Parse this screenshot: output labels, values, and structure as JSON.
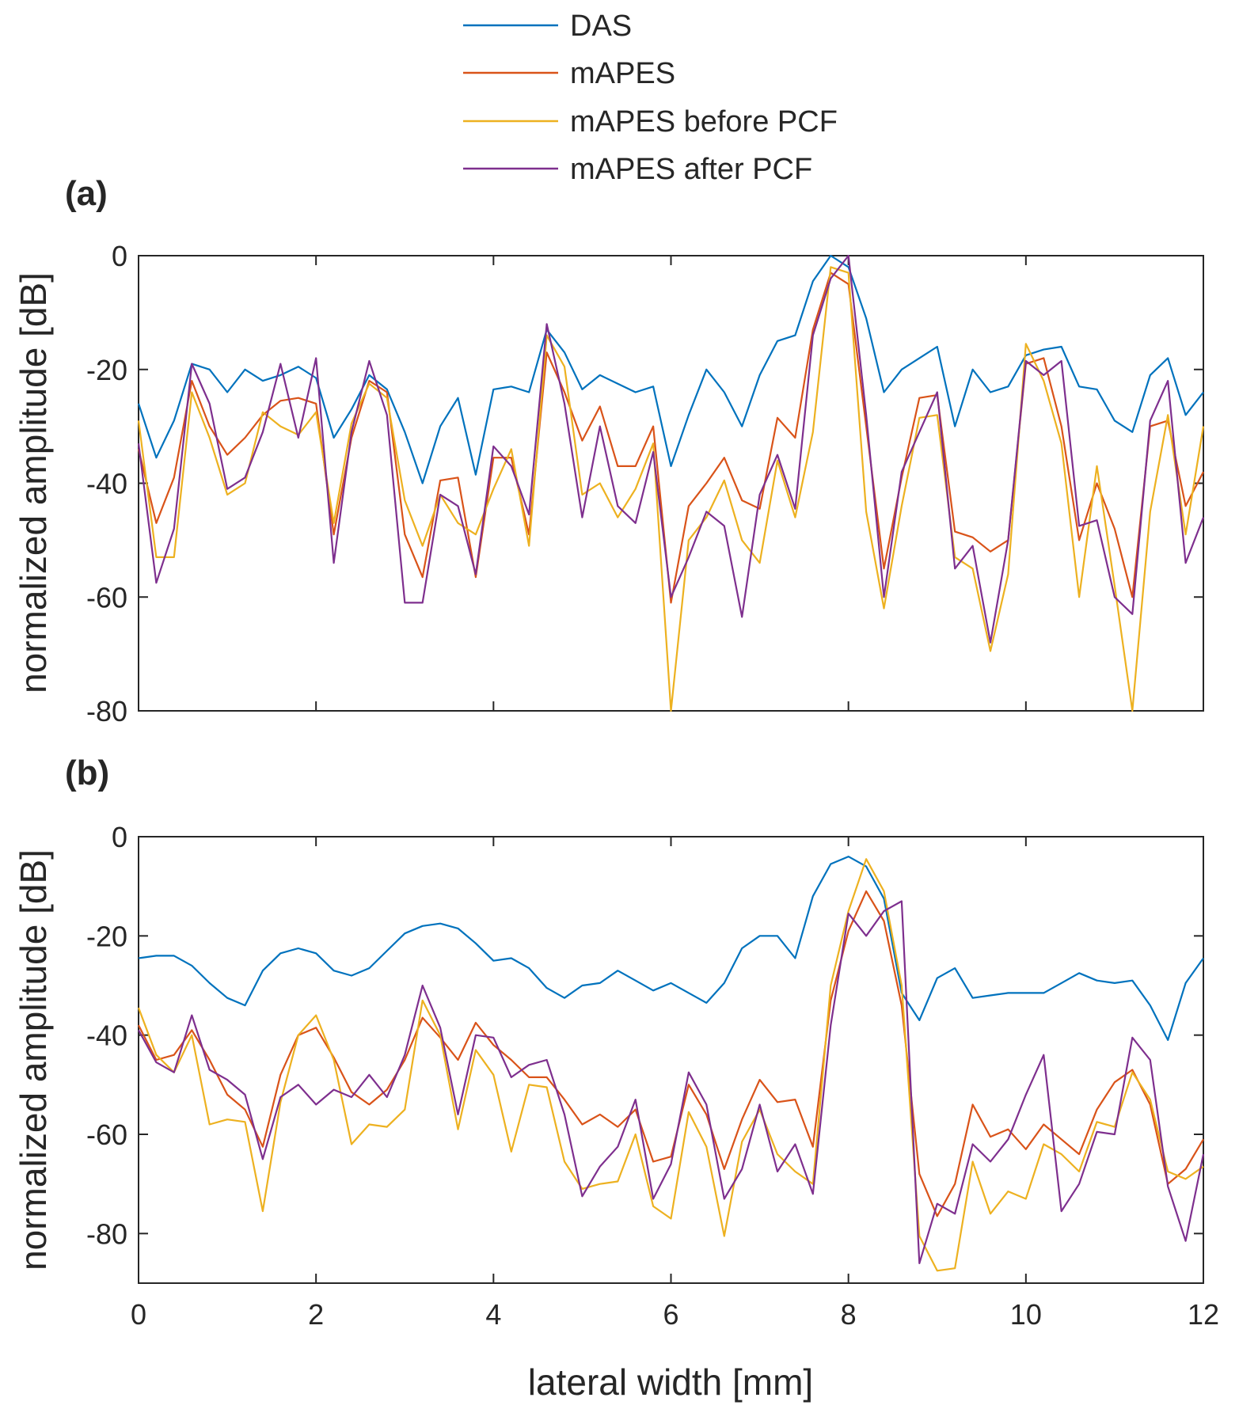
{
  "legend": [
    {
      "name": "DAS",
      "color": "#0072BD"
    },
    {
      "name": "mAPES",
      "color": "#D95319"
    },
    {
      "name": "mAPES before PCF",
      "color": "#EDB120"
    },
    {
      "name": "mAPES after PCF",
      "color": "#7E2F8E"
    }
  ],
  "chart_data": [
    {
      "type": "line",
      "panel_label": "(a)",
      "xlabel": "",
      "ylabel": "normalized amplitude [dB]",
      "xlim": [
        0,
        12
      ],
      "ylim": [
        -80,
        0
      ],
      "xticks": [
        0,
        2,
        4,
        6,
        8,
        10,
        12
      ],
      "xtick_labels": [
        "",
        "",
        "",
        "",
        "",
        "",
        ""
      ],
      "yticks": [
        0,
        -20,
        -40,
        -60,
        -80
      ],
      "ytick_labels": [
        "0",
        "-20",
        "-40",
        "-60",
        "-80"
      ],
      "x_step": 0.2,
      "series": [
        {
          "name": "DAS",
          "color": "#0072BD",
          "values": [
            -26,
            -35.5,
            -29,
            -19,
            -20,
            -24,
            -20,
            -22,
            -21,
            -19.5,
            -21.5,
            -32,
            -27,
            -21,
            -23.5,
            -31,
            -40,
            -30,
            -25,
            -38.5,
            -23.5,
            -23,
            -24,
            -13,
            -17,
            -23.5,
            -21,
            -22.5,
            -24,
            -23,
            -37,
            -28,
            -20,
            -24,
            -30,
            -21,
            -15,
            -14,
            -4.5,
            0,
            -2,
            -11,
            -24,
            -20,
            -18,
            -16,
            -30,
            -20,
            -24,
            -23,
            -17.5,
            -16.5,
            -16,
            -23,
            -23.5,
            -29,
            -31,
            -21,
            -18,
            -28,
            -24
          ]
        },
        {
          "name": "mAPES",
          "color": "#D95319",
          "values": [
            -34,
            -47,
            -39,
            -22,
            -30,
            -35,
            -32,
            -28,
            -25.5,
            -25,
            -26,
            -49,
            -32,
            -22,
            -24,
            -49,
            -56.5,
            -39.5,
            -39,
            -56.5,
            -35.5,
            -35.5,
            -49,
            -17,
            -24,
            -32.5,
            -26.5,
            -37,
            -37,
            -30,
            -61,
            -44,
            -40,
            -35.5,
            -43,
            -44.5,
            -28.5,
            -32,
            -13,
            -3,
            -5,
            -30,
            -55,
            -39,
            -25,
            -24.5,
            -48.5,
            -49.5,
            -52,
            -50,
            -19,
            -18,
            -30,
            -50,
            -40,
            -48,
            -60,
            -30,
            -29,
            -44,
            -38
          ]
        },
        {
          "name": "mAPES before PCF",
          "color": "#EDB120",
          "values": [
            -29,
            -53,
            -53,
            -24,
            -32,
            -42,
            -40,
            -27.5,
            -30,
            -31.5,
            -27.5,
            -47,
            -29.5,
            -22.5,
            -25,
            -43,
            -51,
            -42,
            -47,
            -49,
            -41,
            -34,
            -51,
            -14,
            -19.5,
            -42,
            -40,
            -46,
            -41,
            -33,
            -80,
            -50,
            -46,
            -39.5,
            -50,
            -54,
            -36,
            -46,
            -31,
            -2,
            -3,
            -45,
            -62,
            -44,
            -28.5,
            -28,
            -53,
            -55,
            -69.5,
            -56,
            -15.5,
            -22,
            -33,
            -60,
            -37,
            -58,
            -80,
            -45,
            -28,
            -49,
            -30
          ]
        },
        {
          "name": "mAPES after PCF",
          "color": "#7E2F8E",
          "values": [
            -33,
            -57.5,
            -48,
            -19,
            -26,
            -41,
            -39,
            -31,
            -19,
            -32,
            -18,
            -54,
            -31,
            -18.5,
            -28,
            -61,
            -61,
            -42,
            -44,
            -56,
            -33.5,
            -37,
            -45.5,
            -12,
            -26,
            -46,
            -30,
            -44,
            -47,
            -34.5,
            -60,
            -53,
            -45,
            -47.5,
            -63.5,
            -42,
            -35,
            -44.5,
            -14,
            -4,
            0,
            -28,
            -60,
            -38,
            -31,
            -24,
            -55,
            -51,
            -68,
            -50,
            -18.5,
            -21,
            -18.5,
            -47.5,
            -46.5,
            -60,
            -63,
            -29,
            -22,
            -54,
            -46
          ]
        }
      ]
    },
    {
      "type": "line",
      "panel_label": "(b)",
      "xlabel": "lateral width [mm]",
      "ylabel": "normalized amplitude [dB]",
      "xlim": [
        0,
        12
      ],
      "ylim": [
        -90,
        0
      ],
      "xticks": [
        0,
        2,
        4,
        6,
        8,
        10,
        12
      ],
      "xtick_labels": [
        "0",
        "2",
        "4",
        "6",
        "8",
        "10",
        "12"
      ],
      "yticks": [
        0,
        -20,
        -40,
        -60,
        -80
      ],
      "ytick_labels": [
        "0",
        "-20",
        "-40",
        "-60",
        "-80"
      ],
      "x_step": 0.2,
      "series": [
        {
          "name": "DAS",
          "color": "#0072BD",
          "values": [
            -24.5,
            -24,
            -24,
            -26,
            -29.5,
            -32.5,
            -34,
            -27,
            -23.5,
            -22.5,
            -23.5,
            -27,
            -28,
            -26.5,
            -23,
            -19.5,
            -18,
            -17.5,
            -18.5,
            -21.5,
            -25,
            -24.5,
            -26.5,
            -30.5,
            -32.5,
            -30,
            -29.5,
            -27,
            -29,
            -31,
            -29.5,
            -31.5,
            -33.5,
            -29.5,
            -22.5,
            -20,
            -20,
            -24.5,
            -12,
            -5.5,
            -4,
            -6,
            -12.5,
            -31.5,
            -37,
            -28.5,
            -26.5,
            -32.5,
            -32,
            -31.5,
            -31.5,
            -31.5,
            -29.5,
            -27.5,
            -29,
            -29.5,
            -29,
            -34,
            -41,
            -29.5,
            -24.5
          ]
        },
        {
          "name": "mAPES",
          "color": "#D95319",
          "values": [
            -38,
            -45,
            -44,
            -39,
            -45,
            -52,
            -55,
            -62.5,
            -48,
            -40,
            -38.5,
            -44.5,
            -51.5,
            -54,
            -51,
            -45,
            -36.5,
            -40.5,
            -45,
            -37.5,
            -42,
            -45,
            -48.5,
            -48.5,
            -53,
            -58,
            -56,
            -58.5,
            -55,
            -65.5,
            -64.5,
            -50,
            -56,
            -67,
            -57,
            -49,
            -53.5,
            -53,
            -62.5,
            -33,
            -19,
            -11,
            -17,
            -34,
            -68,
            -76.5,
            -70,
            -54,
            -60.5,
            -59,
            -63,
            -58,
            -61,
            -64,
            -55,
            -49.5,
            -47,
            -54,
            -70,
            -67,
            -61
          ]
        },
        {
          "name": "mAPES before PCF",
          "color": "#EDB120",
          "values": [
            -34.5,
            -44,
            -47.5,
            -40,
            -58,
            -57,
            -57.5,
            -75.5,
            -53.5,
            -40,
            -36,
            -45,
            -62,
            -58,
            -58.5,
            -55,
            -33,
            -40,
            -59,
            -43,
            -48,
            -63.5,
            -50,
            -50.5,
            -65.5,
            -71,
            -70,
            -69.5,
            -60,
            -74.5,
            -77,
            -55.5,
            -62.5,
            -80.5,
            -61.5,
            -55,
            -64,
            -67.5,
            -70,
            -30,
            -15,
            -4.5,
            -11,
            -30,
            -80.5,
            -87.5,
            -87,
            -65.5,
            -76,
            -71.5,
            -73,
            -62,
            -64,
            -67.5,
            -57.5,
            -58.5,
            -47.5,
            -53,
            -67.5,
            -69,
            -66.5
          ]
        },
        {
          "name": "mAPES after PCF",
          "color": "#7E2F8E",
          "values": [
            -39,
            -45.5,
            -47.5,
            -36,
            -47,
            -49,
            -52,
            -65,
            -52.5,
            -50,
            -54,
            -51,
            -52.5,
            -48,
            -52.5,
            -44,
            -30,
            -38.5,
            -56,
            -40,
            -40.5,
            -48.5,
            -46,
            -45,
            -56,
            -72.5,
            -66.5,
            -62.5,
            -53,
            -73,
            -66,
            -47.5,
            -54,
            -73,
            -67,
            -54,
            -67.5,
            -62,
            -72,
            -38,
            -15.5,
            -20,
            -15,
            -13,
            -86,
            -74,
            -76,
            -62,
            -65.5,
            -61,
            -52,
            -44,
            -75.5,
            -70,
            -59.5,
            -60,
            -40.5,
            -45,
            -70.5,
            -81.5,
            -64
          ]
        }
      ]
    }
  ]
}
